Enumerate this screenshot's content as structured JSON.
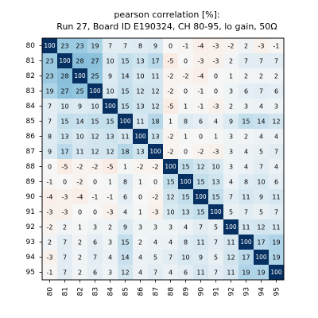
{
  "chart_data": {
    "type": "heatmap",
    "title": "pearson correlation [%]:",
    "subtitle": "Run 27, Board ID E190324, CH 80-95, lo gain, 50Ω",
    "x_labels": [
      "80",
      "81",
      "82",
      "83",
      "84",
      "85",
      "86",
      "87",
      "88",
      "89",
      "90",
      "91",
      "92",
      "93",
      "94",
      "95"
    ],
    "y_labels": [
      "80",
      "81",
      "82",
      "83",
      "84",
      "85",
      "86",
      "87",
      "88",
      "89",
      "90",
      "91",
      "92",
      "93",
      "94",
      "95"
    ],
    "colormap": "RdBu_r",
    "color_range": [
      -100,
      100
    ],
    "colors": {
      "negative": "#67001f",
      "neutral": "#f7f7f7",
      "positive": "#053061"
    },
    "values": [
      [
        100,
        23,
        23,
        19,
        7,
        7,
        8,
        9,
        0,
        -1,
        -4,
        -3,
        -2,
        2,
        -3,
        -1
      ],
      [
        23,
        100,
        28,
        27,
        10,
        15,
        13,
        17,
        -5,
        0,
        -3,
        -3,
        2,
        7,
        7,
        7
      ],
      [
        23,
        28,
        100,
        25,
        9,
        14,
        10,
        11,
        -2,
        -2,
        -4,
        0,
        1,
        2,
        2,
        2
      ],
      [
        19,
        27,
        25,
        100,
        10,
        15,
        12,
        12,
        -2,
        0,
        -1,
        0,
        3,
        6,
        7,
        6
      ],
      [
        7,
        10,
        9,
        10,
        100,
        15,
        13,
        12,
        -5,
        1,
        -1,
        -3,
        2,
        3,
        4,
        3
      ],
      [
        7,
        15,
        14,
        15,
        15,
        100,
        11,
        18,
        1,
        8,
        6,
        4,
        9,
        15,
        14,
        12
      ],
      [
        8,
        13,
        10,
        12,
        13,
        11,
        100,
        13,
        -2,
        1,
        0,
        1,
        3,
        2,
        4,
        4
      ],
      [
        9,
        17,
        11,
        12,
        12,
        18,
        13,
        100,
        -2,
        0,
        -2,
        -3,
        3,
        4,
        5,
        7
      ],
      [
        0,
        -5,
        -2,
        -2,
        -5,
        1,
        -2,
        -2,
        100,
        15,
        12,
        10,
        3,
        4,
        7,
        4
      ],
      [
        -1,
        0,
        -2,
        0,
        1,
        8,
        1,
        0,
        15,
        100,
        15,
        13,
        4,
        8,
        10,
        6
      ],
      [
        -4,
        -3,
        -4,
        -1,
        -1,
        6,
        0,
        -2,
        12,
        15,
        100,
        15,
        7,
        11,
        9,
        11
      ],
      [
        -3,
        -3,
        0,
        0,
        -3,
        4,
        1,
        -3,
        10,
        13,
        15,
        100,
        5,
        7,
        5,
        7
      ],
      [
        -2,
        2,
        1,
        3,
        2,
        9,
        3,
        3,
        3,
        4,
        7,
        5,
        100,
        11,
        12,
        11
      ],
      [
        2,
        7,
        2,
        6,
        3,
        15,
        2,
        4,
        4,
        8,
        11,
        7,
        11,
        100,
        17,
        19
      ],
      [
        -3,
        7,
        2,
        7,
        4,
        14,
        4,
        5,
        7,
        10,
        9,
        5,
        12,
        17,
        100,
        19
      ],
      [
        -1,
        7,
        2,
        6,
        3,
        12,
        4,
        7,
        4,
        6,
        11,
        7,
        11,
        19,
        19,
        100
      ]
    ]
  }
}
